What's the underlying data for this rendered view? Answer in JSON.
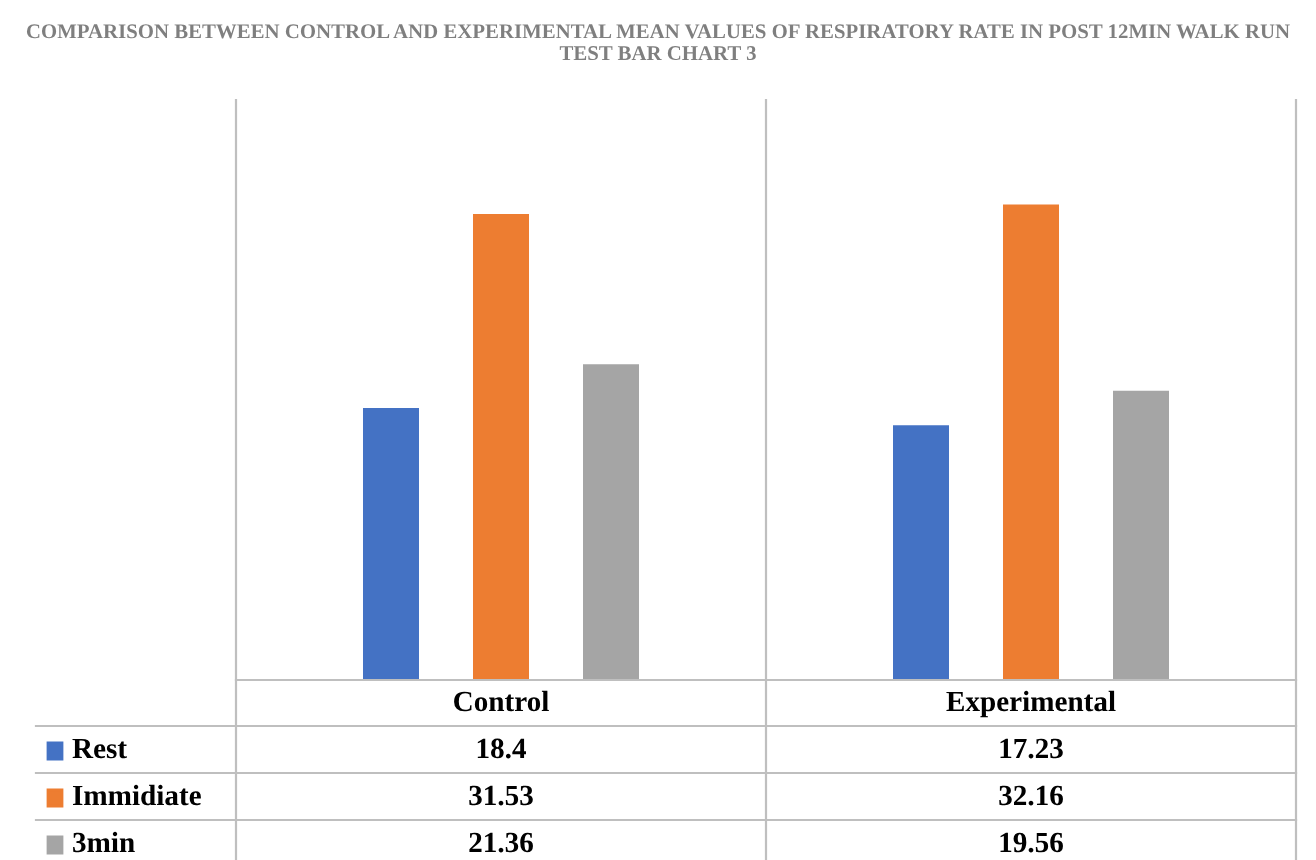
{
  "chart_data": {
    "type": "bar",
    "title": "COMPARISON BETWEEN CONTROL AND EXPERIMENTAL MEAN VALUES OF RESPIRATORY RATE IN POST 12MIN WALK RUN TEST BAR CHART 3",
    "categories": [
      "Control",
      "Experimental"
    ],
    "series": [
      {
        "name": "Rest",
        "color": "#4472c4",
        "values": [
          18.4,
          17.23
        ]
      },
      {
        "name": "Immidiate",
        "color": "#ed7d31",
        "values": [
          31.53,
          32.16
        ]
      },
      {
        "name": "3min",
        "color": "#a5a5a5",
        "values": [
          21.36,
          19.56
        ]
      }
    ],
    "data_labels": true,
    "legend": "bottom"
  }
}
